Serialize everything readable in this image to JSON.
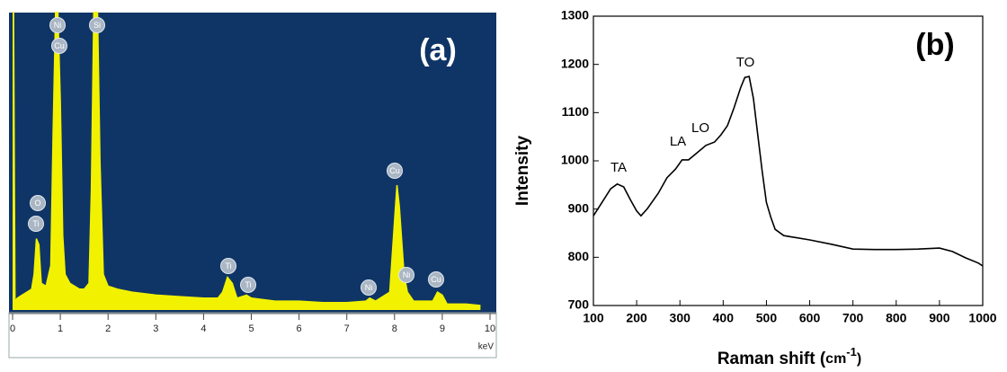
{
  "chart_data": [
    {
      "type": "area",
      "panel_label": "(a)",
      "color": "#f2f200",
      "background": "#0f3566",
      "x": [
        0.0,
        0.02,
        0.05,
        0.1,
        0.2,
        0.3,
        0.4,
        0.45,
        0.5,
        0.55,
        0.6,
        0.7,
        0.8,
        0.85,
        0.9,
        0.95,
        1.0,
        1.05,
        1.1,
        1.2,
        1.3,
        1.4,
        1.5,
        1.6,
        1.65,
        1.7,
        1.78,
        1.83,
        1.9,
        2.0,
        2.2,
        2.5,
        3.0,
        3.5,
        4.0,
        4.3,
        4.4,
        4.5,
        4.6,
        4.7,
        4.9,
        5.0,
        5.5,
        6.0,
        6.5,
        7.0,
        7.4,
        7.48,
        7.6,
        7.9,
        8.0,
        8.05,
        8.1,
        8.2,
        8.27,
        8.4,
        8.8,
        8.9,
        9.0,
        9.1,
        9.5,
        9.8
      ],
      "values": [
        100,
        100,
        3,
        4,
        5,
        6,
        7,
        12,
        24,
        22,
        9,
        8,
        15,
        60,
        100,
        100,
        70,
        25,
        12,
        9,
        8,
        7,
        7,
        9,
        40,
        100,
        100,
        50,
        12,
        8,
        7,
        6,
        5,
        4.5,
        4,
        4,
        6,
        11,
        9,
        4,
        5,
        4,
        3,
        3,
        2.5,
        2.5,
        3,
        4,
        3,
        6,
        30,
        42,
        35,
        12,
        6,
        3,
        3,
        6,
        5,
        2,
        2,
        1.5
      ],
      "xlim": [
        0,
        10
      ],
      "ylim": [
        0,
        100
      ],
      "xticks": [
        0,
        1,
        2,
        3,
        4,
        5,
        6,
        7,
        8,
        9,
        10
      ],
      "xlabel": "keV",
      "annotations": [
        "O",
        "Ti",
        "Ni",
        "Cu",
        "Si",
        "Ti",
        "Ti",
        "Ni",
        "Cu",
        "Ni",
        "Cu"
      ]
    },
    {
      "type": "line",
      "panel_label": "(b)",
      "color": "#000000",
      "x": [
        100,
        120,
        140,
        155,
        170,
        185,
        200,
        210,
        225,
        250,
        270,
        290,
        305,
        320,
        340,
        360,
        380,
        395,
        410,
        425,
        440,
        450,
        460,
        470,
        480,
        490,
        500,
        510,
        520,
        540,
        560,
        600,
        650,
        700,
        750,
        800,
        850,
        900,
        930,
        960,
        990,
        1000
      ],
      "values": [
        886,
        914,
        942,
        952,
        946,
        920,
        896,
        886,
        901,
        933,
        965,
        983,
        1002,
        1002,
        1017,
        1032,
        1039,
        1054,
        1073,
        1110,
        1151,
        1173,
        1175,
        1129,
        1054,
        980,
        914,
        883,
        858,
        845,
        842,
        836,
        827,
        817,
        816,
        816,
        817,
        819,
        812,
        799,
        788,
        782
      ],
      "xlim": [
        100,
        1000
      ],
      "ylim": [
        700,
        1300
      ],
      "xticks": [
        100,
        200,
        300,
        400,
        500,
        600,
        700,
        800,
        900,
        1000
      ],
      "yticks": [
        700,
        800,
        900,
        1000,
        1100,
        1200,
        1300
      ],
      "xlabel": [
        "Raman shift (",
        "cm",
        "-1",
        ")"
      ],
      "ylabel": "Intensity",
      "annotations": [
        "TA",
        "LA",
        "LO",
        "TO"
      ]
    }
  ]
}
